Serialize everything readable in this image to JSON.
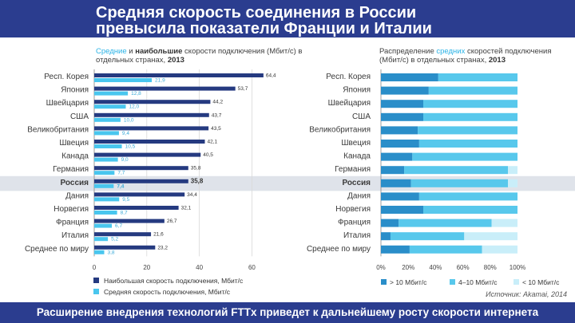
{
  "header": {
    "title_line1": "Средняя скорость соединения в России",
    "title_line2": "превысила показатели Франции и Италии"
  },
  "left_chart": {
    "subtitle_part1": "Средние",
    "subtitle_part2": " и ",
    "subtitle_part3": "наибольшие",
    "subtitle_part4": " скорости подключения (Мбит/с) в отдельных странах, ",
    "subtitle_year": "2013"
  },
  "right_chart": {
    "subtitle_part1": "Распределение ",
    "subtitle_part2": "средних",
    "subtitle_part3": " скоростей подключения (Мбит/с) в отдельных странах, ",
    "subtitle_year": "2013"
  },
  "source": "Источник: Akamai, 2014",
  "footer": "Расширение внедрения технологий FTTx приведет к дальнейшему росту скорости интернета",
  "colors": {
    "header_bg": "#2b3d8f",
    "max_bar": "#253a80",
    "avg_bar": "#49c6ee",
    "dist_high": "#2a8ec9",
    "dist_mid": "#58c8ec",
    "dist_low": "#c9eef9",
    "highlight_row": "#dfe3ea"
  },
  "chart_data": [
    {
      "type": "bar",
      "orientation": "horizontal",
      "categories": [
        "Респ. Корея",
        "Япония",
        "Швейцария",
        "США",
        "Великобритания",
        "Швеция",
        "Канада",
        "Германия",
        "Россия",
        "Дания",
        "Норвегия",
        "Франция",
        "Италия",
        "Среднее по миру"
      ],
      "highlight_category": "Россия",
      "series": [
        {
          "name": "Наибольшая скорость подключения, Мбит/с",
          "values": [
            64.4,
            53.7,
            44.2,
            43.7,
            43.5,
            42.1,
            40.5,
            35.8,
            35.8,
            34.4,
            32.1,
            26.7,
            21.6,
            23.2
          ],
          "labels": [
            "64,4",
            "53,7",
            "44,2",
            "43,7",
            "43,5",
            "42,1",
            "40,5",
            "35,8",
            "35,8",
            "34,4",
            "32,1",
            "26,7",
            "21,6",
            "23,2"
          ]
        },
        {
          "name": "Средняя скорость подключения, Мбит/с",
          "values": [
            21.9,
            12.8,
            12.0,
            10.0,
            9.4,
            10.5,
            9.0,
            7.7,
            7.4,
            9.5,
            8.7,
            6.7,
            5.2,
            3.8
          ],
          "labels": [
            "21,9",
            "12,8",
            "12,0",
            "10,0",
            "9,4",
            "10,5",
            "9,0",
            "7,7",
            "7,4",
            "9,5",
            "8,7",
            "6,7",
            "5,2",
            "3,8"
          ]
        }
      ],
      "xlim": [
        0,
        70
      ],
      "xticks": [
        "0",
        "20",
        "40",
        "60"
      ],
      "legend_position": "bottom"
    },
    {
      "type": "bar",
      "orientation": "horizontal",
      "stacked": true,
      "categories": [
        "Респ. Корея",
        "Япония",
        "Швейцария",
        "США",
        "Великобритания",
        "Швеция",
        "Канада",
        "Германия",
        "Россия",
        "Дания",
        "Норвегия",
        "Франция",
        "Италия",
        "Среднее по миру"
      ],
      "highlight_category": "Россия",
      "series": [
        {
          "name": "> 10 Мбит/с",
          "values": [
            42,
            35,
            31,
            31,
            27,
            28,
            23,
            17,
            22,
            28,
            31,
            13,
            7,
            21
          ]
        },
        {
          "name": "4–10 Мбит/с",
          "values": [
            58,
            65,
            69,
            69,
            73,
            72,
            77,
            76,
            71,
            72,
            69,
            68,
            54,
            53
          ]
        },
        {
          "name": "< 10 Мбит/с",
          "values": [
            0,
            0,
            0,
            0,
            0,
            0,
            0,
            7,
            7,
            0,
            0,
            19,
            39,
            26
          ]
        }
      ],
      "xlim": [
        0,
        100
      ],
      "xticks": [
        "0%",
        "20%",
        "40%",
        "60%",
        "80%",
        "100%"
      ],
      "legend_position": "bottom"
    }
  ]
}
